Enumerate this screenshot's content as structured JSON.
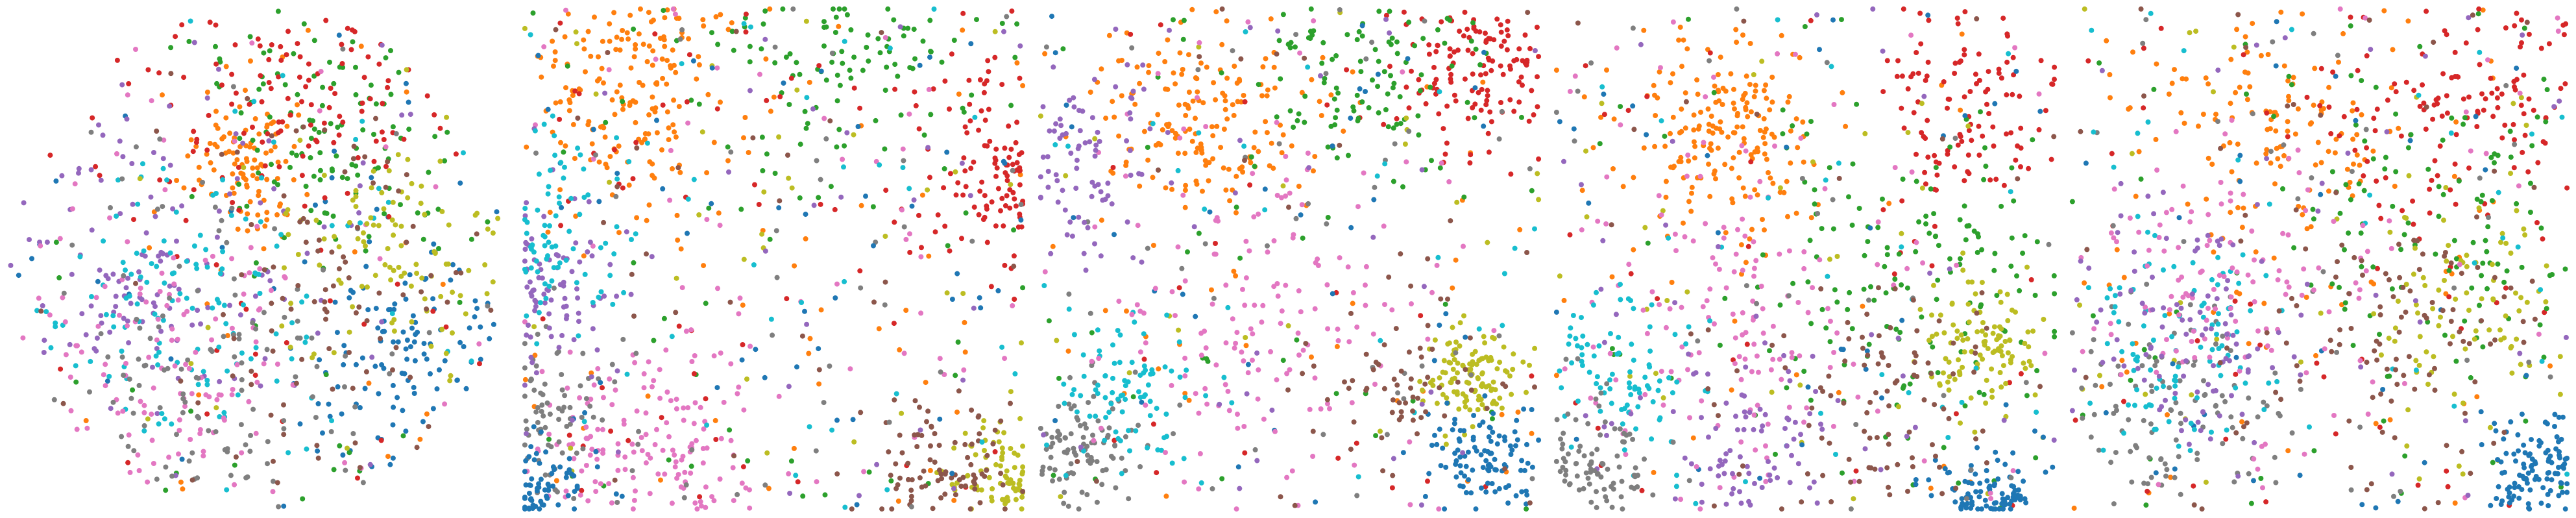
{
  "chart_data": [
    {
      "type": "scatter",
      "shape": "disk",
      "xlim": [
        -1,
        1
      ],
      "ylim": [
        -1,
        1
      ],
      "grid": false,
      "axes_visible": false,
      "legend": "none",
      "colors": {
        "blue": "#1f77b4",
        "orange": "#ff7f0e",
        "green": "#2ca02c",
        "red": "#d62728",
        "purple": "#9467bd",
        "brown": "#8c564b",
        "pink": "#e377c2",
        "gray": "#7f7f7f",
        "olive": "#bcbd22",
        "cyan": "#17becf"
      },
      "clusters": [
        {
          "color": "orange",
          "cx": -0.05,
          "cy": -0.38,
          "spread": 0.12,
          "share": 0.09
        },
        {
          "color": "blue",
          "cx": 0.62,
          "cy": 0.42,
          "spread": 0.22,
          "share": 0.1
        },
        {
          "color": "green",
          "cx": 0.35,
          "cy": -0.55,
          "spread": 0.3,
          "share": 0.1
        },
        {
          "color": "red",
          "cx": 0.25,
          "cy": -0.6,
          "spread": 0.3,
          "share": 0.1
        },
        {
          "color": "purple",
          "cx": -0.45,
          "cy": 0.05,
          "spread": 0.3,
          "share": 0.1
        },
        {
          "color": "cyan",
          "cx": -0.25,
          "cy": 0.2,
          "spread": 0.3,
          "share": 0.1
        },
        {
          "color": "pink",
          "cx": -0.35,
          "cy": 0.45,
          "spread": 0.3,
          "share": 0.1
        },
        {
          "color": "gray",
          "cx": -0.2,
          "cy": 0.55,
          "spread": 0.3,
          "share": 0.09
        },
        {
          "color": "olive",
          "cx": 0.55,
          "cy": 0.0,
          "spread": 0.25,
          "share": 0.08
        },
        {
          "color": "brown",
          "cx": 0.35,
          "cy": 0.1,
          "spread": 0.3,
          "share": 0.07
        }
      ]
    },
    {
      "type": "scatter",
      "shape": "square",
      "xlim": [
        -1,
        1
      ],
      "ylim": [
        -1,
        1
      ],
      "grid": false,
      "axes_visible": false,
      "legend": "none",
      "clusters": [
        {
          "color": "orange",
          "cx": -0.6,
          "cy": -0.7,
          "spread": 0.22,
          "share": 0.16
        },
        {
          "color": "green",
          "cx": 0.3,
          "cy": -0.98,
          "spread": 0.3,
          "share": 0.1
        },
        {
          "color": "red",
          "cx": 0.98,
          "cy": -0.35,
          "spread": 0.2,
          "share": 0.12
        },
        {
          "color": "pink",
          "cx": -0.55,
          "cy": 0.8,
          "spread": 0.25,
          "share": 0.14
        },
        {
          "color": "olive",
          "cx": 0.92,
          "cy": 0.88,
          "spread": 0.12,
          "share": 0.08
        },
        {
          "color": "brown",
          "cx": 0.65,
          "cy": 0.9,
          "spread": 0.15,
          "share": 0.08
        },
        {
          "color": "gray",
          "cx": -0.98,
          "cy": 0.6,
          "spread": 0.15,
          "share": 0.08
        },
        {
          "color": "blue",
          "cx": -0.98,
          "cy": 0.95,
          "spread": 0.1,
          "share": 0.08
        },
        {
          "color": "purple",
          "cx": -0.98,
          "cy": 0.1,
          "spread": 0.15,
          "share": 0.08
        },
        {
          "color": "cyan",
          "cx": -0.95,
          "cy": -0.1,
          "spread": 0.2,
          "share": 0.08
        }
      ]
    },
    {
      "type": "scatter",
      "shape": "pinched-square",
      "xlim": [
        -1,
        1
      ],
      "ylim": [
        -1,
        1
      ],
      "grid": false,
      "axes_visible": false,
      "legend": "none",
      "clusters": [
        {
          "color": "orange",
          "cx": -0.35,
          "cy": -0.55,
          "spread": 0.2,
          "share": 0.15
        },
        {
          "color": "red",
          "cx": 0.75,
          "cy": -0.75,
          "spread": 0.15,
          "share": 0.11
        },
        {
          "color": "green",
          "cx": 0.35,
          "cy": -0.75,
          "spread": 0.25,
          "share": 0.1
        },
        {
          "color": "olive",
          "cx": 0.72,
          "cy": 0.45,
          "spread": 0.1,
          "share": 0.1
        },
        {
          "color": "blue",
          "cx": 0.78,
          "cy": 0.8,
          "spread": 0.12,
          "share": 0.1
        },
        {
          "color": "gray",
          "cx": -0.85,
          "cy": 0.75,
          "spread": 0.15,
          "share": 0.1
        },
        {
          "color": "cyan",
          "cx": -0.65,
          "cy": 0.55,
          "spread": 0.15,
          "share": 0.08
        },
        {
          "color": "pink",
          "cx": -0.1,
          "cy": 0.3,
          "spread": 0.35,
          "share": 0.12
        },
        {
          "color": "purple",
          "cx": -0.9,
          "cy": -0.4,
          "spread": 0.2,
          "share": 0.08
        },
        {
          "color": "brown",
          "cx": 0.45,
          "cy": 0.55,
          "spread": 0.2,
          "share": 0.06
        }
      ]
    },
    {
      "type": "scatter",
      "shape": "rounded-square",
      "xlim": [
        -1,
        1
      ],
      "ylim": [
        -1,
        1
      ],
      "grid": false,
      "axes_visible": false,
      "legend": "none",
      "clusters": [
        {
          "color": "orange",
          "cx": -0.3,
          "cy": -0.5,
          "spread": 0.2,
          "share": 0.15
        },
        {
          "color": "red",
          "cx": 0.65,
          "cy": -0.6,
          "spread": 0.2,
          "share": 0.1
        },
        {
          "color": "green",
          "cx": 0.45,
          "cy": 0.1,
          "spread": 0.35,
          "share": 0.12
        },
        {
          "color": "olive",
          "cx": 0.72,
          "cy": 0.35,
          "spread": 0.12,
          "share": 0.1
        },
        {
          "color": "blue",
          "cx": 0.75,
          "cy": 0.95,
          "spread": 0.12,
          "share": 0.09
        },
        {
          "color": "pink",
          "cx": -0.3,
          "cy": 0.25,
          "spread": 0.3,
          "share": 0.12
        },
        {
          "color": "cyan",
          "cx": -0.75,
          "cy": 0.45,
          "spread": 0.15,
          "share": 0.08
        },
        {
          "color": "purple",
          "cx": -0.2,
          "cy": 0.75,
          "spread": 0.2,
          "share": 0.08
        },
        {
          "color": "gray",
          "cx": -0.92,
          "cy": 0.85,
          "spread": 0.15,
          "share": 0.08
        },
        {
          "color": "brown",
          "cx": 0.35,
          "cy": 0.6,
          "spread": 0.25,
          "share": 0.08
        }
      ]
    },
    {
      "type": "scatter",
      "shape": "irregular",
      "xlim": [
        -1,
        1
      ],
      "ylim": [
        -1,
        1
      ],
      "grid": false,
      "axes_visible": false,
      "legend": "none",
      "clusters": [
        {
          "color": "orange",
          "cx": -0.2,
          "cy": -0.45,
          "spread": 0.25,
          "share": 0.13
        },
        {
          "color": "red",
          "cx": 0.55,
          "cy": -0.65,
          "spread": 0.3,
          "share": 0.12
        },
        {
          "color": "green",
          "cx": 0.45,
          "cy": -0.1,
          "spread": 0.35,
          "share": 0.1
        },
        {
          "color": "olive",
          "cx": 0.6,
          "cy": 0.2,
          "spread": 0.2,
          "share": 0.08
        },
        {
          "color": "blue",
          "cx": 0.88,
          "cy": 0.85,
          "spread": 0.12,
          "share": 0.1
        },
        {
          "color": "gray",
          "cx": -0.6,
          "cy": 0.6,
          "spread": 0.25,
          "share": 0.1
        },
        {
          "color": "cyan",
          "cx": -0.55,
          "cy": 0.35,
          "spread": 0.2,
          "share": 0.09
        },
        {
          "color": "pink",
          "cx": -0.35,
          "cy": 0.1,
          "spread": 0.3,
          "share": 0.1
        },
        {
          "color": "purple",
          "cx": -0.5,
          "cy": 0.3,
          "spread": 0.25,
          "share": 0.09
        },
        {
          "color": "brown",
          "cx": 0.35,
          "cy": 0.35,
          "spread": 0.3,
          "share": 0.09
        }
      ]
    }
  ]
}
